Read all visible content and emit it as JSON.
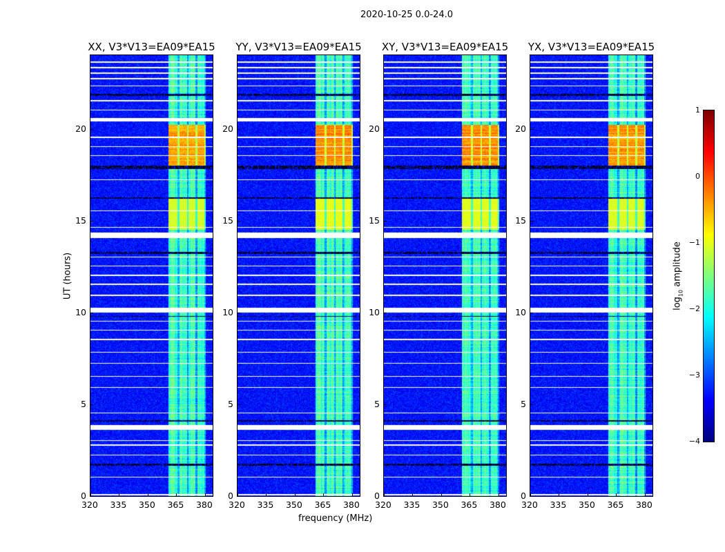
{
  "chart_data": {
    "type": "heatmap",
    "title": "2020-10-25 0.0-24.0",
    "xlabel": "frequency (MHz)",
    "ylabel": "UT (hours)",
    "xlim": [
      320,
      384
    ],
    "ylim": [
      0,
      24
    ],
    "xticks": [
      "320",
      "335",
      "350",
      "365",
      "380"
    ],
    "xtick_values": [
      320,
      335,
      350,
      365,
      380
    ],
    "yticks": [
      "0",
      "5",
      "10",
      "15",
      "20"
    ],
    "ytick_values": [
      0,
      5,
      10,
      15,
      20
    ],
    "panels": [
      {
        "title": "XX, V3*V13=EA09*EA15",
        "rfi_strength": 0.75
      },
      {
        "title": "YY, V3*V13=EA09*EA15",
        "rfi_strength": 1.0
      },
      {
        "title": "XY, V3*V13=EA09*EA15",
        "rfi_strength": 0.95
      },
      {
        "title": "YX, V3*V13=EA09*EA15",
        "rfi_strength": 0.85
      }
    ],
    "colorbar": {
      "label_prefix": "log",
      "label_sub": "10",
      "label_suffix": " amplitude",
      "range": [
        -4,
        1
      ],
      "ticks": [
        "1",
        "0",
        "−1",
        "−2",
        "−3",
        "−4"
      ],
      "tick_values": [
        1,
        0,
        -1,
        -2,
        -3,
        -4
      ],
      "colormap": "jet"
    },
    "features": {
      "background_level": -3.3,
      "band_mhz": [
        361,
        380.5
      ],
      "band_level": -1.8,
      "band_gaps_mhz": [
        366,
        371,
        375.5,
        380
      ],
      "rfi_yellow_hours": [
        14.5,
        16.2
      ],
      "rfi_orange_hours": [
        18.0,
        20.2
      ],
      "flagged_white_hours": [
        [
          0.05,
          0.1
        ],
        [
          1.0,
          1.05
        ],
        [
          2.2,
          2.25
        ],
        [
          2.75,
          2.8
        ],
        [
          3.0,
          3.05
        ],
        [
          3.6,
          3.85
        ],
        [
          4.5,
          4.55
        ],
        [
          5.9,
          5.95
        ],
        [
          6.5,
          6.55
        ],
        [
          7.2,
          7.25
        ],
        [
          7.8,
          7.85
        ],
        [
          8.5,
          8.55
        ],
        [
          9.0,
          9.05
        ],
        [
          9.5,
          9.55
        ],
        [
          10.0,
          10.25
        ],
        [
          10.9,
          10.95
        ],
        [
          11.5,
          11.55
        ],
        [
          12.0,
          12.05
        ],
        [
          12.5,
          12.55
        ],
        [
          13.0,
          13.05
        ],
        [
          14.05,
          14.35
        ],
        [
          14.6,
          14.65
        ],
        [
          15.5,
          15.55
        ],
        [
          17.2,
          17.25
        ],
        [
          18.5,
          18.55
        ],
        [
          19.0,
          19.05
        ],
        [
          19.5,
          19.55
        ],
        [
          20.4,
          20.6
        ],
        [
          21.0,
          21.05
        ],
        [
          21.5,
          21.55
        ],
        [
          22.3,
          22.35
        ],
        [
          22.7,
          22.75
        ],
        [
          23.0,
          23.05
        ],
        [
          23.3,
          23.35
        ],
        [
          23.6,
          23.65
        ]
      ],
      "zero_black_hours": [
        [
          1.65,
          1.75
        ],
        [
          4.05,
          4.12
        ],
        [
          9.75,
          9.82
        ],
        [
          13.2,
          13.28
        ],
        [
          16.2,
          16.26
        ],
        [
          17.8,
          18.0
        ],
        [
          21.8,
          21.88
        ]
      ]
    }
  }
}
